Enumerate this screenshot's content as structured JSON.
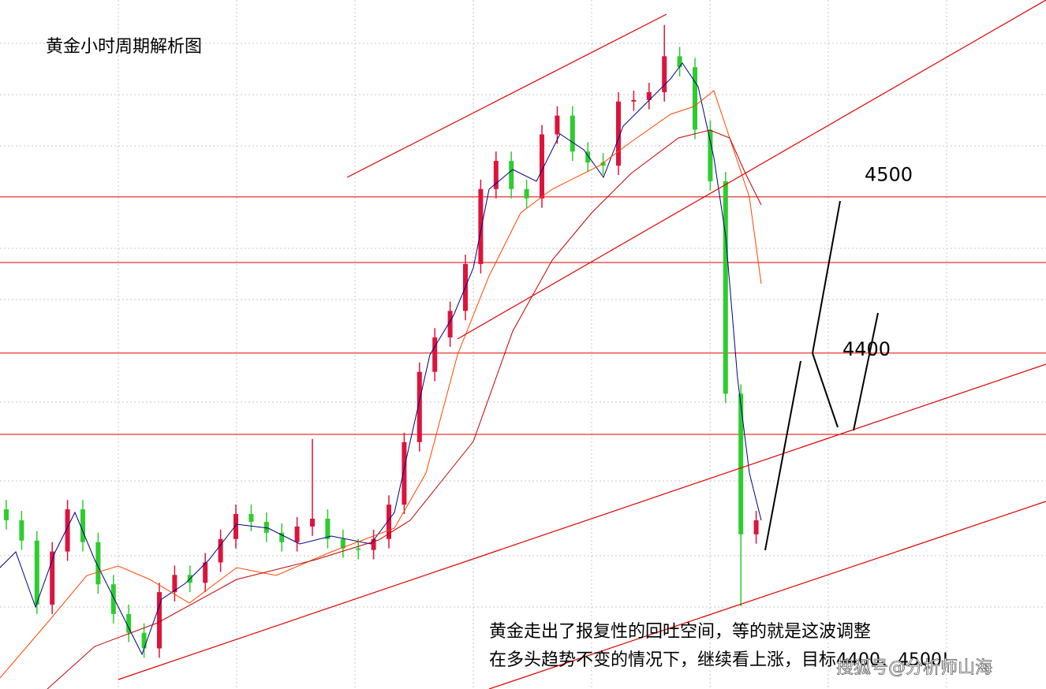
{
  "chart_data": {
    "type": "candlestick",
    "title": "黄金小时周期解析图",
    "annotations": [
      "黄金走出了报复性的回吐空间，等的就是这波调整",
      "在多头趋势不变的情况下，继续看上涨，目标4400、4500!"
    ],
    "watermark": "搜狐号@分析师山海",
    "ylim": [
      4185,
      4626
    ],
    "levels": [
      4500,
      4458,
      4400,
      4348
    ],
    "level_color": "#e00000",
    "up_color": "#dc143c",
    "down_color": "#2ecc2e",
    "open": [
      4300,
      4293,
      4280,
      4239,
      4273,
      4300,
      4279,
      4252,
      4233,
      4221,
      4211,
      4247,
      4258,
      4253,
      4266,
      4281,
      4297,
      4292,
      4285,
      4279,
      4289,
      4294,
      4281,
      4275,
      4274,
      4281,
      4303,
      4343,
      4388,
      4410,
      4427,
      4457,
      4505,
      4523,
      4505,
      4499,
      4540,
      4552,
      4529,
      4522,
      4520,
      4561,
      4562,
      4567,
      4590,
      4583,
      4543,
      4510,
      4374,
      4284
    ],
    "high": [
      4306,
      4299,
      4286,
      4279,
      4306,
      4306,
      4285,
      4258,
      4239,
      4227,
      4253,
      4264,
      4264,
      4272,
      4287,
      4303,
      4303,
      4298,
      4291,
      4295,
      4345,
      4300,
      4287,
      4281,
      4287,
      4309,
      4349,
      4394,
      4416,
      4433,
      4463,
      4511,
      4529,
      4529,
      4511,
      4546,
      4558,
      4558,
      4535,
      4528,
      4567,
      4568,
      4573,
      4610,
      4596,
      4589,
      4549,
      4516,
      4380,
      4299
    ],
    "low": [
      4287,
      4274,
      4233,
      4233,
      4267,
      4273,
      4246,
      4227,
      4215,
      4205,
      4205,
      4241,
      4247,
      4247,
      4260,
      4275,
      4286,
      4279,
      4273,
      4273,
      4283,
      4275,
      4269,
      4268,
      4268,
      4275,
      4297,
      4337,
      4382,
      4404,
      4421,
      4451,
      4499,
      4499,
      4493,
      4493,
      4534,
      4523,
      4516,
      4514,
      4514,
      4555,
      4556,
      4561,
      4577,
      4537,
      4504,
      4368,
      4238,
      4278
    ],
    "close": [
      4293,
      4280,
      4239,
      4273,
      4300,
      4279,
      4252,
      4233,
      4221,
      4211,
      4247,
      4258,
      4253,
      4266,
      4281,
      4297,
      4292,
      4285,
      4279,
      4289,
      4294,
      4281,
      4275,
      4274,
      4281,
      4303,
      4343,
      4388,
      4410,
      4427,
      4457,
      4505,
      4523,
      4505,
      4499,
      4540,
      4552,
      4529,
      4522,
      4520,
      4561,
      4562,
      4567,
      4590,
      4583,
      4543,
      4510,
      4374,
      4284,
      4293
    ]
  }
}
